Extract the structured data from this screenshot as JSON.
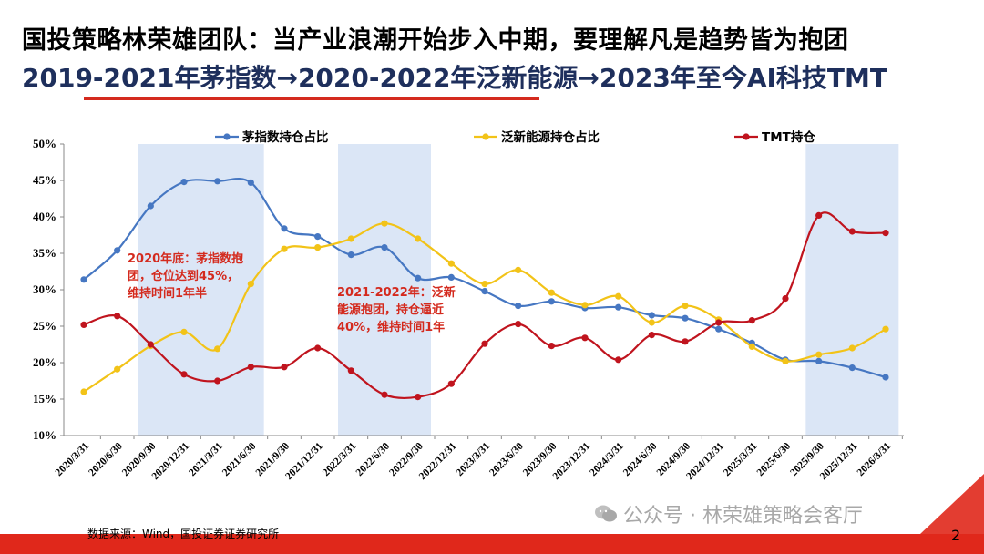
{
  "header": {
    "title_line1": "国投策略林荣雄团队：当产业浪潮开始步入中期，要理解凡是趋势皆为抱团",
    "title_line2": "2019-2021年茅指数→2020-2022年泛新能源→2023年至今AI科技TMT"
  },
  "footer": {
    "source": "数据来源：Wind，国投证券证券研究所",
    "watermark": "公众号 · 林荣雄策略会客厅",
    "page_number": "2"
  },
  "colors": {
    "title": "#000000",
    "subtitle": "#1e2f5c",
    "accent_red": "#d42a1e",
    "shade": "#dbe6f6",
    "annotation": "#d42a1e"
  },
  "chart_data": {
    "type": "line",
    "x": [
      "2020/3/31",
      "2020/6/30",
      "2020/9/30",
      "2020/12/31",
      "2021/3/31",
      "2021/6/30",
      "2021/9/30",
      "2021/12/31",
      "2022/3/31",
      "2022/6/30",
      "2022/9/30",
      "2022/12/31",
      "2023/3/31",
      "2023/6/30",
      "2023/9/30",
      "2023/12/31",
      "2024/3/31",
      "2024/6/30",
      "2024/9/30",
      "2024/12/31",
      "2025/3/31",
      "2025/6/30",
      "2025/9/30",
      "2025/12/31",
      "2026/3/31"
    ],
    "ylim": [
      10,
      50
    ],
    "yticks": [
      "10%",
      "15%",
      "20%",
      "25%",
      "30%",
      "35%",
      "40%",
      "45%",
      "50%"
    ],
    "series": [
      {
        "name": "茅指数持仓占比",
        "color": "#4677c2",
        "values": [
          31.4,
          35.4,
          41.5,
          44.8,
          44.9,
          44.7,
          38.4,
          37.3,
          34.8,
          35.8,
          31.6,
          31.7,
          29.8,
          27.8,
          28.4,
          27.5,
          27.6,
          26.5,
          26.1,
          24.6,
          22.7,
          20.4,
          20.2,
          19.3,
          18.0
        ]
      },
      {
        "name": "泛新能源持仓占比",
        "color": "#f2c318",
        "values": [
          16.0,
          19.1,
          22.3,
          24.2,
          21.9,
          30.8,
          35.6,
          35.8,
          37.0,
          39.1,
          37.0,
          33.6,
          30.8,
          32.7,
          29.6,
          27.9,
          29.1,
          25.5,
          27.8,
          25.9,
          22.2,
          20.2,
          21.1,
          22.0,
          24.6
        ]
      },
      {
        "name": "TMT持仓",
        "color": "#c0141e",
        "values": [
          25.2,
          26.4,
          22.5,
          18.4,
          17.5,
          19.4,
          19.4,
          22.0,
          18.9,
          15.6,
          15.3,
          17.1,
          22.6,
          25.3,
          22.3,
          23.4,
          20.4,
          23.8,
          22.9,
          25.5,
          25.8,
          28.8,
          40.2,
          38.0,
          37.8
        ]
      }
    ],
    "shaded_ranges": [
      {
        "from_index": 2,
        "to_index": 5
      },
      {
        "from_index": 8,
        "to_index": 10
      },
      {
        "from_index": 22,
        "to_index": 24
      }
    ],
    "annotations": [
      {
        "lines": [
          "2020年底：茅指数抱",
          "团，仓位达到45%，",
          "维持时间1年半"
        ]
      },
      {
        "lines": [
          "2021-2022年：泛新",
          "能源抱团，持仓逼近",
          "40%，维持时间1年"
        ]
      }
    ],
    "legend": "top",
    "grid": false
  }
}
